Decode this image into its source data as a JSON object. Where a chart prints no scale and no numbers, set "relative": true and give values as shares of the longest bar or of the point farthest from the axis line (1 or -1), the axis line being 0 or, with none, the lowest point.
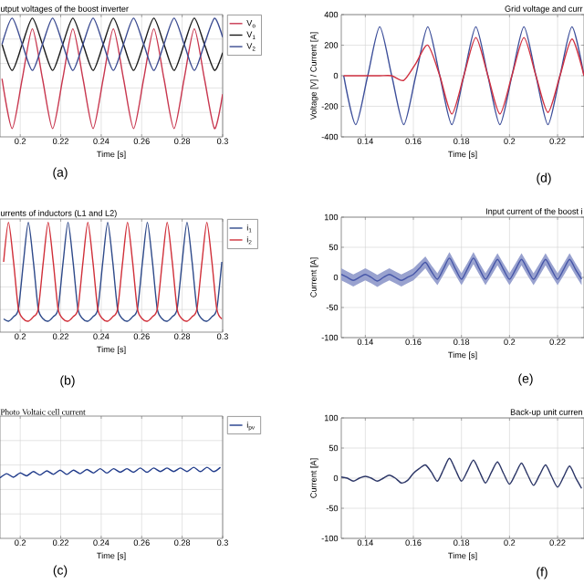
{
  "chart_data": [
    {
      "type": "line",
      "title": "utput voltages of the boost inverter",
      "xlabel": "Time [s]",
      "relative": true,
      "grid": true,
      "legend": "top right",
      "xlim": [
        0.19,
        0.3
      ],
      "xticks": [
        0.2,
        0.22,
        0.24,
        0.26,
        0.28,
        0.3
      ],
      "annotations": [
        "(a)"
      ],
      "x": [
        0.191,
        0.196,
        0.201,
        0.206,
        0.211,
        0.216,
        0.221,
        0.226,
        0.231,
        0.236,
        0.241,
        0.246,
        0.251,
        0.256,
        0.261,
        0.266,
        0.271,
        0.276,
        0.281,
        0.286,
        0.291,
        0.296,
        0.3
      ],
      "series": [
        {
          "name": "V$_{o}$",
          "color": "#c8374f",
          "values": [
            0.49,
            0.07,
            0.49,
            0.91,
            0.49,
            0.07,
            0.49,
            0.91,
            0.49,
            0.07,
            0.49,
            0.91,
            0.49,
            0.07,
            0.49,
            0.91,
            0.49,
            0.07,
            0.49,
            0.91,
            0.49,
            0.07,
            0.36
          ]
        },
        {
          "name": "V$_{1}$",
          "color": "#1a1a1a",
          "values": [
            0.78,
            0.56,
            0.78,
            1,
            0.78,
            0.56,
            0.78,
            1,
            0.78,
            0.56,
            0.78,
            1,
            0.78,
            0.56,
            0.78,
            1,
            0.78,
            0.56,
            0.78,
            1,
            0.78,
            0.56,
            0.71
          ]
        },
        {
          "name": "V$_{2}$",
          "color": "#3a4a90",
          "values": [
            0.78,
            1,
            0.78,
            0.56,
            0.78,
            1,
            0.78,
            0.56,
            0.78,
            1,
            0.78,
            0.56,
            0.78,
            1,
            0.78,
            0.56,
            0.78,
            1,
            0.78,
            0.56,
            0.78,
            1,
            0.84
          ]
        }
      ]
    },
    {
      "type": "line",
      "title": "Grid voltage and curr",
      "xlabel": "Time [s]",
      "ylabel": "Voltage [V] / Current [A]",
      "grid": true,
      "xlim": [
        0.13,
        0.231
      ],
      "xticks": [
        0.14,
        0.16,
        0.18,
        0.2,
        0.22
      ],
      "ylim": [
        -400,
        400
      ],
      "yticks": [
        -400,
        -200,
        0,
        200,
        400
      ],
      "annotations": [
        "(d)"
      ],
      "x": [
        0.131,
        0.136,
        0.141,
        0.146,
        0.151,
        0.156,
        0.161,
        0.166,
        0.171,
        0.176,
        0.181,
        0.186,
        0.191,
        0.196,
        0.201,
        0.206,
        0.211,
        0.216,
        0.221,
        0.226,
        0.231
      ],
      "series": [
        {
          "color": "#3d4f9a",
          "values": [
            0,
            -320,
            0,
            320,
            0,
            -320,
            0,
            320,
            0,
            -320,
            0,
            320,
            0,
            -320,
            0,
            320,
            0,
            -320,
            0,
            320,
            0
          ]
        },
        {
          "color": "#d03040",
          "values": [
            0,
            0,
            0,
            0,
            0,
            -30,
            80,
            200,
            0,
            -250,
            0,
            250,
            0,
            -250,
            0,
            250,
            0,
            -240,
            0,
            240,
            0
          ]
        }
      ]
    },
    {
      "type": "line",
      "title": "urrents of inductors (L1 and L2)",
      "xlabel": "Time [s]",
      "relative": true,
      "grid": true,
      "legend": "top right",
      "xlim": [
        0.19,
        0.3
      ],
      "xticks": [
        0.2,
        0.22,
        0.24,
        0.26,
        0.28,
        0.3
      ],
      "annotations": [
        "(b)"
      ],
      "x": [
        0.1918,
        0.1942,
        0.1967,
        0.1991,
        0.2016,
        0.204,
        0.2065,
        0.2089,
        0.2114,
        0.2138,
        0.2163,
        0.2187,
        0.2212,
        0.2236,
        0.2261,
        0.2285,
        0.231,
        0.2334,
        0.2359,
        0.2383,
        0.2408,
        0.2432,
        0.2457,
        0.2481,
        0.2506,
        0.253,
        0.2555,
        0.2579,
        0.2604,
        0.2628,
        0.2653,
        0.2677,
        0.2702,
        0.2726,
        0.2751,
        0.2775,
        0.28,
        0.2824,
        0.2849,
        0.2873,
        0.2898,
        0.2922,
        0.2947,
        0.2971,
        0.2996
      ],
      "series": [
        {
          "name": "i$_{1}$",
          "color": "#2f4a8a",
          "values": [
            0.12,
            0.1,
            0.14,
            0.21,
            0.64,
            1,
            0.64,
            0.21,
            0.12,
            0.1,
            0.14,
            0.21,
            0.64,
            1,
            0.64,
            0.21,
            0.12,
            0.1,
            0.14,
            0.21,
            0.64,
            1,
            0.64,
            0.21,
            0.12,
            0.1,
            0.14,
            0.21,
            0.64,
            1,
            0.64,
            0.21,
            0.12,
            0.1,
            0.14,
            0.21,
            0.64,
            1,
            0.64,
            0.21,
            0.12,
            0.1,
            0.14,
            0.21,
            0.64
          ]
        },
        {
          "name": "i$_{2}$",
          "color": "#d0303a",
          "values": [
            0.64,
            1,
            0.64,
            0.21,
            0.12,
            0.1,
            0.14,
            0.21,
            0.64,
            1,
            0.64,
            0.21,
            0.12,
            0.1,
            0.14,
            0.21,
            0.64,
            1,
            0.64,
            0.21,
            0.12,
            0.1,
            0.14,
            0.21,
            0.64,
            1,
            0.64,
            0.21,
            0.12,
            0.1,
            0.14,
            0.21,
            0.64,
            1,
            0.64,
            0.21,
            0.12,
            0.1,
            0.14,
            0.21,
            0.64,
            1,
            0.64,
            0.21,
            0.12
          ]
        }
      ]
    },
    {
      "type": "line",
      "title": "Input current of the boost i",
      "xlabel": "Time [s]",
      "ylabel": "Current [A]",
      "grid": true,
      "xlim": [
        0.13,
        0.231
      ],
      "xticks": [
        0.14,
        0.16,
        0.18,
        0.2,
        0.22
      ],
      "ylim": [
        -100,
        100
      ],
      "yticks": [
        -100,
        -50,
        0,
        50,
        100
      ],
      "annotations": [
        "(e)"
      ],
      "x": [
        0.13,
        0.1325,
        0.135,
        0.1375,
        0.14,
        0.1425,
        0.145,
        0.1475,
        0.15,
        0.1525,
        0.155,
        0.1575,
        0.16,
        0.1625,
        0.165,
        0.1675,
        0.17,
        0.1725,
        0.175,
        0.1775,
        0.18,
        0.1825,
        0.185,
        0.1875,
        0.19,
        0.1925,
        0.195,
        0.1975,
        0.2,
        0.2025,
        0.205,
        0.2075,
        0.21,
        0.2125,
        0.215,
        0.2175,
        0.22,
        0.2225,
        0.225,
        0.2275,
        0.23
      ],
      "series": [
        {
          "color": "#4656a8",
          "values": [
            5,
            0,
            -5,
            0,
            5,
            0,
            -6,
            0,
            5,
            0,
            -5,
            0,
            5,
            15,
            25,
            10,
            -3,
            14,
            32,
            14,
            -3,
            14,
            32,
            14,
            -3,
            13,
            30,
            13,
            -3,
            13,
            30,
            13,
            -3,
            13,
            30,
            13,
            -3,
            13,
            30,
            13,
            -3
          ],
          "lower": [
            -5,
            -10,
            -15,
            -10,
            -5,
            -10,
            -16,
            -10,
            -5,
            -10,
            -15,
            -10,
            -5,
            5,
            15,
            0,
            -13,
            4,
            22,
            4,
            -13,
            4,
            22,
            4,
            -13,
            3,
            20,
            3,
            -13,
            3,
            20,
            3,
            -13,
            3,
            20,
            3,
            -13,
            3,
            20,
            3,
            -13
          ],
          "upper": [
            15,
            10,
            5,
            10,
            15,
            10,
            4,
            10,
            15,
            10,
            5,
            10,
            15,
            25,
            35,
            20,
            7,
            24,
            42,
            24,
            7,
            24,
            42,
            24,
            7,
            23,
            40,
            23,
            7,
            23,
            40,
            23,
            7,
            23,
            40,
            23,
            7,
            23,
            40,
            23,
            7
          ]
        }
      ]
    },
    {
      "type": "line",
      "title": "Photo Voltaic cell current",
      "xlabel": "Time [s]",
      "relative": true,
      "grid": true,
      "legend": "top right",
      "xlim": [
        0.19,
        0.3
      ],
      "xticks": [
        0.2,
        0.22,
        0.24,
        0.26,
        0.28,
        0.3
      ],
      "annotations": [
        "(c)"
      ],
      "x": [
        0.19,
        0.1933,
        0.1966,
        0.1999,
        0.2032,
        0.2065,
        0.2098,
        0.2131,
        0.2164,
        0.2197,
        0.223,
        0.2263,
        0.2296,
        0.2329,
        0.2362,
        0.2395,
        0.2428,
        0.2461,
        0.2494,
        0.2527,
        0.256,
        0.2593,
        0.2626,
        0.2659,
        0.2692,
        0.2725,
        0.2758,
        0.2791,
        0.2824,
        0.2857,
        0.289,
        0.2923,
        0.2956,
        0.2989
      ],
      "series": [
        {
          "name": "i$_{pv}$",
          "color": "#1f3a8a",
          "values": [
            0.85,
            0.91,
            0.86,
            0.92,
            0.88,
            0.94,
            0.89,
            0.95,
            0.9,
            0.96,
            0.9,
            0.96,
            0.91,
            0.97,
            0.92,
            0.98,
            0.92,
            0.98,
            0.93,
            0.98,
            0.93,
            0.99,
            0.93,
            0.99,
            0.94,
            0.99,
            0.94,
            0.99,
            0.94,
            1,
            0.94,
            1,
            0.94,
            1
          ]
        }
      ]
    },
    {
      "type": "line",
      "title": "Back-up unit curren",
      "xlabel": "Time [s]",
      "ylabel": "Current [A]",
      "grid": true,
      "xlim": [
        0.13,
        0.231
      ],
      "xticks": [
        0.14,
        0.16,
        0.18,
        0.2,
        0.22
      ],
      "ylim": [
        -100,
        100
      ],
      "yticks": [
        -100,
        -50,
        0,
        50,
        100
      ],
      "annotations": [
        "(f)"
      ],
      "x": [
        0.13,
        0.1325,
        0.135,
        0.1375,
        0.14,
        0.1425,
        0.145,
        0.1475,
        0.15,
        0.1525,
        0.155,
        0.1575,
        0.16,
        0.1625,
        0.165,
        0.1675,
        0.17,
        0.1725,
        0.175,
        0.1775,
        0.18,
        0.1825,
        0.185,
        0.1875,
        0.19,
        0.1925,
        0.195,
        0.1975,
        0.2,
        0.2025,
        0.205,
        0.2075,
        0.21,
        0.2125,
        0.215,
        0.2175,
        0.22,
        0.2225,
        0.225,
        0.2275,
        0.23
      ],
      "series": [
        {
          "color": "#2b3566",
          "values": [
            2,
            0,
            -5,
            0,
            3,
            0,
            -5,
            0,
            5,
            0,
            -8,
            -4,
            8,
            16,
            22,
            10,
            -5,
            14,
            33,
            14,
            -5,
            12,
            30,
            11,
            -8,
            10,
            27,
            8,
            -10,
            7,
            25,
            6,
            -12,
            5,
            22,
            3,
            -15,
            2,
            20,
            1,
            -17
          ]
        }
      ]
    }
  ]
}
